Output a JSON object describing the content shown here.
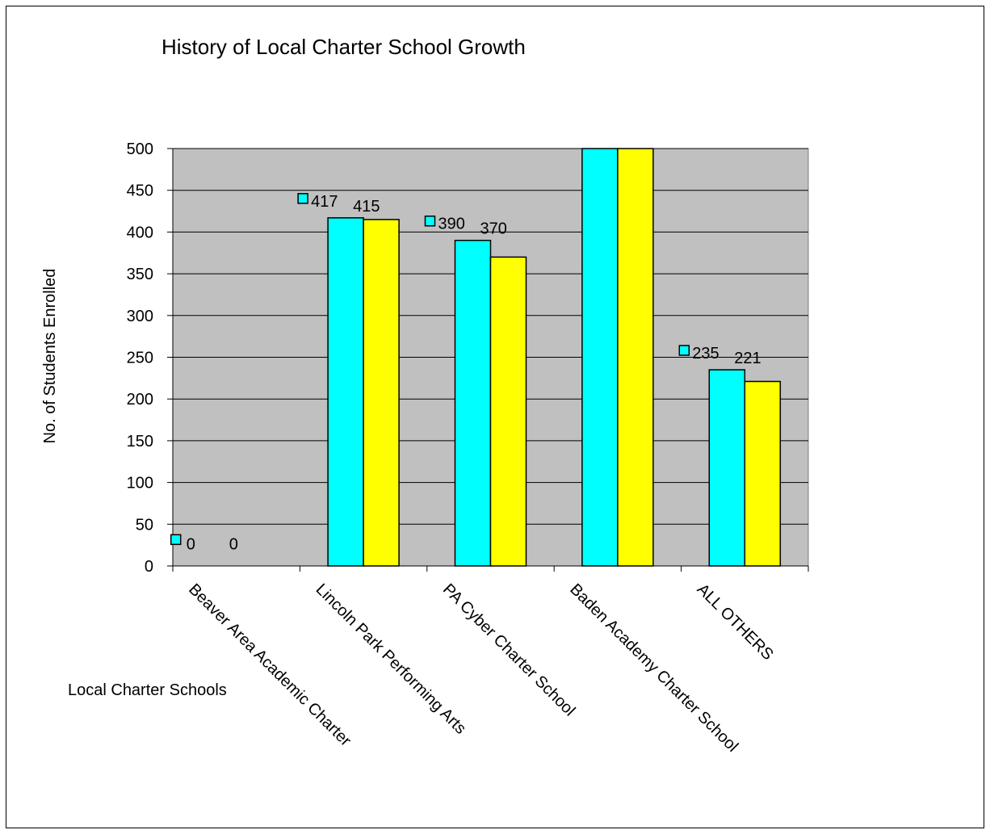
{
  "chart_data": {
    "type": "bar",
    "title": "History of Local Charter School Growth",
    "xlabel": "Local Charter Schools",
    "ylabel": "No. of Students Enrolled",
    "categories": [
      "Beaver Area Academic Charter",
      "Lincoln Park Performing Arts",
      "PA Cyber Charter School",
      "Baden Academy Charter School",
      "ALL OTHERS"
    ],
    "series": [
      {
        "values": [
          0,
          417,
          390,
          500,
          235
        ],
        "color": "#00ffff",
        "data_labels": [
          "0",
          "417",
          "390",
          "",
          "235"
        ]
      },
      {
        "values": [
          0,
          415,
          370,
          500,
          221
        ],
        "color": "#ffff00",
        "data_labels": [
          "0",
          "415",
          "370",
          "",
          "221"
        ]
      }
    ],
    "ylim": [
      0,
      500
    ],
    "yticks": [
      0,
      50,
      100,
      150,
      200,
      250,
      300,
      350,
      400,
      450,
      500
    ],
    "grid": true,
    "legend_key_color": "#00ffff",
    "plot_background": "#c0c0c0"
  }
}
